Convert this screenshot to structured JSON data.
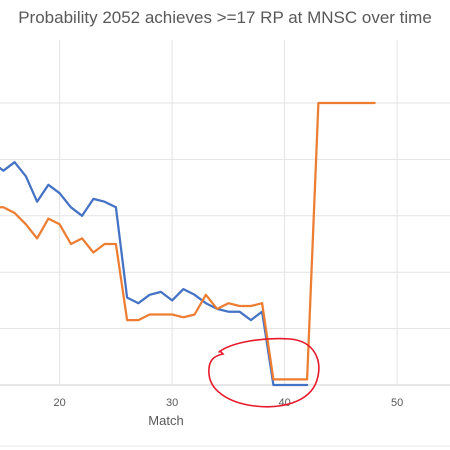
{
  "chart_data": {
    "type": "line",
    "title": "Probability 2052 achieves >=17 RP at MNSC over time",
    "xlabel": "Match",
    "xticks": [
      20,
      30,
      40,
      50
    ],
    "xlim": [
      14.7,
      54.7
    ],
    "ylim": [
      0,
      1
    ],
    "y_gridlines": [
      0,
      0.2,
      0.4,
      0.6,
      0.8,
      1.0
    ],
    "grid": true,
    "legend": "none",
    "series": [
      {
        "color": "#4472C4",
        "x": [
          14,
          15,
          16,
          17,
          18,
          19,
          20,
          21,
          22,
          23,
          24,
          25,
          26,
          27,
          28,
          29,
          30,
          31,
          32,
          33,
          34,
          35,
          36,
          37,
          38,
          39,
          40,
          41,
          42
        ],
        "y": [
          0.79,
          0.76,
          0.79,
          0.74,
          0.65,
          0.71,
          0.68,
          0.63,
          0.6,
          0.66,
          0.65,
          0.63,
          0.31,
          0.29,
          0.32,
          0.33,
          0.3,
          0.34,
          0.32,
          0.29,
          0.27,
          0.26,
          0.26,
          0.23,
          0.26,
          0.0,
          0.0,
          0.0,
          0.0
        ]
      },
      {
        "color": "#ED7D31",
        "x": [
          14,
          15,
          16,
          17,
          18,
          19,
          20,
          21,
          22,
          23,
          24,
          25,
          26,
          27,
          28,
          29,
          30,
          31,
          32,
          33,
          34,
          35,
          36,
          37,
          38,
          39,
          40,
          41,
          42,
          43,
          44,
          45,
          46,
          47,
          48
        ],
        "y": [
          0.63,
          0.63,
          0.61,
          0.57,
          0.52,
          0.59,
          0.57,
          0.5,
          0.52,
          0.47,
          0.5,
          0.5,
          0.23,
          0.23,
          0.25,
          0.25,
          0.25,
          0.24,
          0.25,
          0.32,
          0.27,
          0.29,
          0.28,
          0.28,
          0.29,
          0.02,
          0.02,
          0.02,
          0.02,
          1.0,
          1.0,
          1.0,
          1.0,
          1.0,
          1.0
        ]
      }
    ]
  },
  "annotation": {
    "type": "circle",
    "color": "#E8182A"
  }
}
